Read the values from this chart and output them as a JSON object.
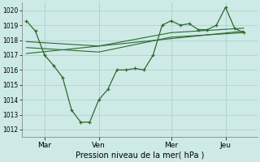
{
  "xlabel": "Pression niveau de la mer( hPa )",
  "ylim": [
    1011.5,
    1020.5
  ],
  "yticks": [
    1012,
    1013,
    1014,
    1015,
    1016,
    1017,
    1018,
    1019,
    1020
  ],
  "xtick_labels": [
    "Mar",
    "Ven",
    "Mer",
    "Jeu"
  ],
  "xtick_positions": [
    2,
    8,
    16,
    22
  ],
  "xlim": [
    -0.5,
    25.5
  ],
  "background_color": "#ceeae7",
  "grid_color": "#aad4d0",
  "line_color": "#2d6a2d",
  "line1_x": [
    0,
    1,
    2,
    3,
    4,
    5,
    6,
    7,
    8,
    9,
    10,
    11,
    12,
    13,
    14,
    15,
    16,
    17,
    18,
    19,
    20,
    21,
    22,
    23,
    24
  ],
  "line1_y": [
    1019.3,
    1018.6,
    1017.0,
    1016.3,
    1015.5,
    1013.3,
    1012.5,
    1012.5,
    1014.0,
    1014.7,
    1016.0,
    1016.0,
    1016.1,
    1016.0,
    1017.0,
    1019.0,
    1019.3,
    1019.0,
    1019.1,
    1018.7,
    1018.7,
    1019.0,
    1020.2,
    1018.8,
    1018.5
  ],
  "line2_x": [
    0,
    8,
    16,
    24
  ],
  "line2_y": [
    1017.5,
    1017.2,
    1018.2,
    1018.5
  ],
  "line3_x": [
    0,
    8,
    16,
    24
  ],
  "line3_y": [
    1017.9,
    1017.6,
    1018.5,
    1018.8
  ],
  "line4_x": [
    0,
    24
  ],
  "line4_y": [
    1017.1,
    1018.6
  ]
}
